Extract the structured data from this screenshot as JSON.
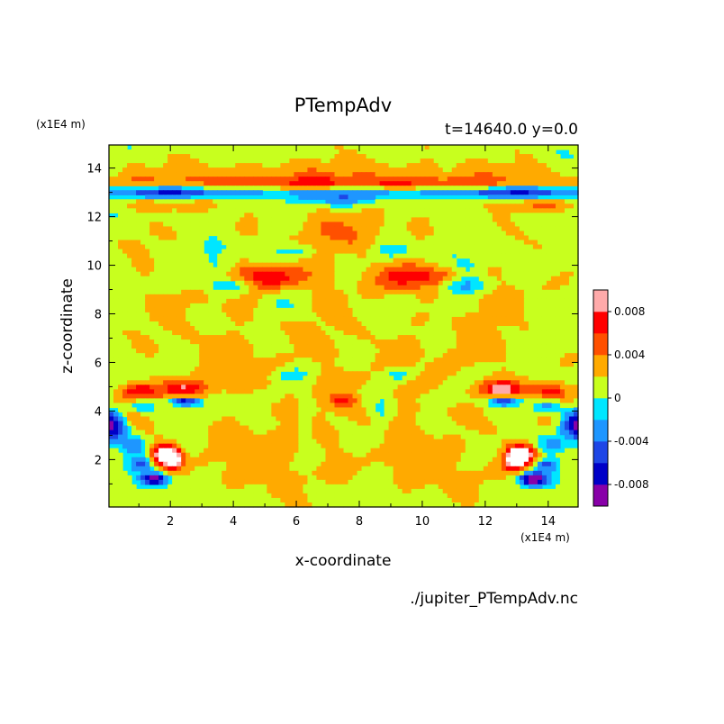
{
  "chart_data": {
    "type": "heatmap",
    "title": "PTempAdv",
    "subtitle": "t=14640.0 y=0.0",
    "xlabel": "x-coordinate",
    "ylabel": "z-coordinate",
    "x_unit": "(x1E4 m)",
    "y_unit": "(x1E4 m)",
    "source_file": "./jupiter_PTempAdv.nc",
    "xlim": [
      0.05,
      14.95
    ],
    "ylim": [
      0.05,
      14.95
    ],
    "x_ticks": [
      "2",
      "4",
      "6",
      "8",
      "10",
      "12",
      "14"
    ],
    "y_ticks": [
      "2",
      "4",
      "6",
      "8",
      "10",
      "12",
      "14"
    ],
    "colorbar": {
      "ticks": [
        "0.008",
        "0.004",
        "0",
        "-0.004",
        "-0.008"
      ],
      "levels": [
        -0.01,
        -0.008,
        -0.006,
        -0.004,
        -0.002,
        0.0,
        0.002,
        0.004,
        0.006,
        0.008,
        0.01
      ],
      "colors": [
        "#8800a8",
        "#0000c8",
        "#1e46e6",
        "#1e96ff",
        "#00e6ff",
        "#c8ff1e",
        "#ffaa00",
        "#ff5000",
        "#ff0000",
        "#ffaaaa"
      ]
    },
    "background_color": "#00e6ff",
    "features": [
      {
        "x": 7.5,
        "y": 8.0,
        "sx": 5.0,
        "sy": 4.5,
        "v": 0.0012
      },
      {
        "x": 7.5,
        "y": 3.0,
        "sx": 4.0,
        "sy": 2.5,
        "v": 0.001
      },
      {
        "x": 7.5,
        "y": 13.9,
        "sx": 6.0,
        "sy": 0.35,
        "v": 0.002
      },
      {
        "x": 7.5,
        "y": 13.4,
        "sx": 6.0,
        "sy": 0.2,
        "v": 0.0045
      },
      {
        "x": 1.5,
        "y": 13.0,
        "sx": 1.5,
        "sy": 0.2,
        "v": -0.006
      },
      {
        "x": 4.0,
        "y": 13.0,
        "sx": 1.5,
        "sy": 0.15,
        "v": -0.003
      },
      {
        "x": 7.5,
        "y": 12.7,
        "sx": 1.0,
        "sy": 0.2,
        "v": -0.004
      },
      {
        "x": 1.5,
        "y": 12.5,
        "sx": 1.0,
        "sy": 0.2,
        "v": 0.003
      },
      {
        "x": 5.0,
        "y": 9.5,
        "sx": 1.0,
        "sy": 0.35,
        "v": 0.006
      },
      {
        "x": 3.8,
        "y": 9.2,
        "sx": 0.6,
        "sy": 0.25,
        "v": -0.005
      },
      {
        "x": 3.6,
        "y": 9.8,
        "sx": 0.4,
        "sy": 0.3,
        "v": -0.003
      },
      {
        "x": 2.5,
        "y": 8.7,
        "sx": 0.9,
        "sy": 1.3,
        "v": 0.001
      },
      {
        "x": 1.0,
        "y": 4.8,
        "sx": 0.4,
        "sy": 0.25,
        "v": 0.006
      },
      {
        "x": 1.0,
        "y": 4.2,
        "sx": 0.35,
        "sy": 0.25,
        "v": -0.006
      },
      {
        "x": 0.1,
        "y": 3.5,
        "sx": 0.4,
        "sy": 0.5,
        "v": -0.012
      },
      {
        "x": 0.6,
        "y": 4.0,
        "sx": 0.5,
        "sy": 0.5,
        "v": 0.005
      },
      {
        "x": 2.5,
        "y": 4.9,
        "sx": 0.5,
        "sy": 0.25,
        "v": 0.007
      },
      {
        "x": 2.4,
        "y": 4.4,
        "sx": 0.35,
        "sy": 0.12,
        "v": -0.009
      },
      {
        "x": 1.8,
        "y": 2.2,
        "sx": 0.3,
        "sy": 0.3,
        "v": 0.011
      },
      {
        "x": 2.1,
        "y": 2.0,
        "sx": 0.2,
        "sy": 0.3,
        "v": 0.008
      },
      {
        "x": 1.5,
        "y": 1.2,
        "sx": 0.35,
        "sy": 0.2,
        "v": -0.011
      },
      {
        "x": 1.1,
        "y": 1.8,
        "sx": 0.25,
        "sy": 0.2,
        "v": -0.006
      },
      {
        "x": 0.9,
        "y": 2.6,
        "sx": 0.3,
        "sy": 0.25,
        "v": -0.004
      },
      {
        "x": 6.5,
        "y": 13.0,
        "sx": 0.6,
        "sy": 0.15,
        "v": -0.004
      },
      {
        "x": 6.9,
        "y": 11.4,
        "sx": 0.6,
        "sy": 0.5,
        "v": 0.002
      },
      {
        "x": 6.0,
        "y": 10.6,
        "sx": 0.4,
        "sy": 0.2,
        "v": -0.003
      },
      {
        "x": 7.5,
        "y": 4.4,
        "sx": 0.3,
        "sy": 0.2,
        "v": 0.004
      },
      {
        "x": 5.8,
        "y": 5.5,
        "sx": 0.4,
        "sy": 0.2,
        "v": -0.003
      },
      {
        "x": 4.5,
        "y": 4.5,
        "sx": 0.6,
        "sy": 0.2,
        "v": -0.002
      },
      {
        "x": 3.5,
        "y": 6.2,
        "sx": 0.8,
        "sy": 0.6,
        "v": 0.001
      },
      {
        "x": 5.2,
        "y": 2.0,
        "sx": 0.8,
        "sy": 0.9,
        "v": 0.001
      },
      {
        "x": 3.0,
        "y": 1.5,
        "sx": 1.0,
        "sy": 0.7,
        "v": 0.001
      },
      {
        "x": 6.3,
        "y": 3.8,
        "sx": 0.2,
        "sy": 0.7,
        "v": -0.002
      },
      {
        "x": 5.5,
        "y": 8.3,
        "sx": 0.5,
        "sy": 0.35,
        "v": -0.0015
      },
      {
        "x": 0.8,
        "y": 11.0,
        "sx": 0.6,
        "sy": 0.5,
        "v": 0.001
      },
      {
        "x": 3.0,
        "y": 10.5,
        "sx": 0.8,
        "sy": 0.4,
        "v": -0.0015
      }
    ]
  }
}
